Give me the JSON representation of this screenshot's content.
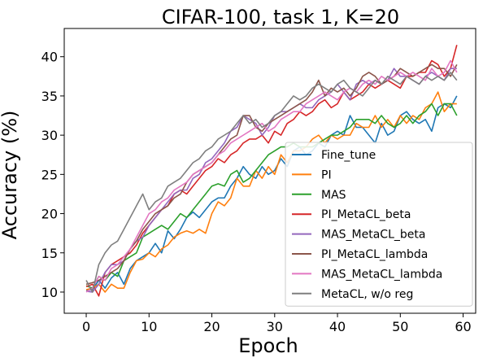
{
  "chart_data": {
    "type": "line",
    "title": "CIFAR-100, task 1, K=20",
    "xlabel": "Epoch",
    "ylabel": "Accuracy (%)",
    "xlim": [
      -3.5,
      62
    ],
    "ylim": [
      7.3,
      43.6
    ],
    "xticks": [
      0,
      10,
      20,
      30,
      40,
      50,
      60
    ],
    "yticks": [
      10,
      15,
      20,
      25,
      30,
      35,
      40
    ],
    "grid": false,
    "legend_position": "lower-right",
    "series": [
      {
        "name": "Fine_tune",
        "color": "#1f77b4",
        "values": [
          10.2,
          10.3,
          11.5,
          10.5,
          11.8,
          12.5,
          11.0,
          13.0,
          14.0,
          14.5,
          15.0,
          16.2,
          15.0,
          17.8,
          16.8,
          18.0,
          19.5,
          20.2,
          19.5,
          20.5,
          21.5,
          22.0,
          22.0,
          23.5,
          24.5,
          26.0,
          25.0,
          24.5,
          26.0,
          25.0,
          25.5,
          27.0,
          26.0,
          28.0,
          28.5,
          27.5,
          28.0,
          29.0,
          28.5,
          30.0,
          30.5,
          30.0,
          32.5,
          31.0,
          31.0,
          30.0,
          29.0,
          31.5,
          30.0,
          30.5,
          32.5,
          33.0,
          32.0,
          31.5,
          32.0,
          30.5,
          33.5,
          34.0,
          33.5,
          35.0
        ]
      },
      {
        "name": "PI",
        "color": "#ff7f0e",
        "values": [
          10.3,
          10.5,
          11.0,
          10.0,
          11.0,
          10.5,
          10.5,
          12.5,
          14.0,
          14.2,
          15.0,
          14.5,
          15.5,
          16.0,
          17.0,
          17.5,
          17.8,
          17.5,
          18.0,
          17.5,
          20.0,
          21.5,
          21.0,
          22.0,
          24.5,
          23.5,
          23.5,
          25.5,
          24.5,
          26.0,
          25.0,
          27.5,
          26.5,
          28.0,
          28.0,
          28.5,
          29.5,
          30.0,
          29.0,
          30.0,
          29.5,
          30.0,
          30.0,
          31.5,
          31.0,
          31.0,
          32.5,
          31.0,
          32.0,
          31.0,
          32.5,
          31.5,
          32.5,
          32.0,
          33.5,
          34.0,
          35.5,
          33.0,
          34.0,
          34.0
        ]
      },
      {
        "name": "MAS",
        "color": "#2ca02c",
        "values": [
          10.8,
          10.5,
          12.0,
          11.5,
          12.5,
          12.0,
          14.0,
          14.5,
          15.0,
          17.0,
          17.5,
          18.0,
          18.5,
          18.0,
          19.0,
          20.0,
          19.5,
          20.5,
          21.5,
          22.5,
          23.5,
          23.8,
          23.5,
          25.0,
          25.5,
          24.0,
          24.5,
          25.5,
          26.5,
          27.5,
          28.0,
          28.5,
          28.5,
          29.0,
          28.5,
          28.5,
          28.5,
          29.0,
          29.5,
          30.0,
          30.0,
          30.5,
          31.0,
          32.0,
          32.0,
          32.0,
          31.5,
          32.5,
          31.5,
          31.0,
          31.5,
          32.5,
          31.5,
          32.5,
          33.0,
          34.0,
          32.5,
          34.0,
          34.0,
          32.5
        ]
      },
      {
        "name": "PI_MetaCL_beta",
        "color": "#d62728",
        "values": [
          10.7,
          11.0,
          9.5,
          12.5,
          13.5,
          14.0,
          14.5,
          15.0,
          16.0,
          17.5,
          18.5,
          19.5,
          20.5,
          21.0,
          22.5,
          23.0,
          22.5,
          23.5,
          24.5,
          25.5,
          26.0,
          27.0,
          26.5,
          27.5,
          28.0,
          29.0,
          29.5,
          29.5,
          30.0,
          29.0,
          30.5,
          30.0,
          31.5,
          32.0,
          33.0,
          32.5,
          33.0,
          34.0,
          34.5,
          33.5,
          34.0,
          35.5,
          34.5,
          35.0,
          35.5,
          36.5,
          36.0,
          36.5,
          37.0,
          36.5,
          36.0,
          37.5,
          37.5,
          38.0,
          38.0,
          39.5,
          39.0,
          37.5,
          38.5,
          41.5
        ]
      },
      {
        "name": "MAS_MetaCL_beta",
        "color": "#9467bd",
        "values": [
          10.1,
          10.0,
          11.0,
          12.5,
          13.5,
          13.5,
          14.0,
          15.5,
          16.5,
          17.0,
          18.5,
          19.5,
          20.5,
          21.5,
          22.5,
          23.0,
          23.0,
          24.5,
          25.0,
          26.5,
          27.0,
          28.0,
          29.0,
          30.5,
          31.0,
          32.5,
          32.0,
          31.5,
          30.0,
          31.0,
          32.5,
          33.0,
          33.0,
          33.5,
          34.0,
          33.5,
          33.5,
          34.5,
          35.0,
          35.5,
          36.5,
          35.5,
          34.5,
          36.5,
          37.0,
          36.5,
          37.0,
          36.5,
          37.0,
          38.5,
          37.5,
          37.5,
          37.0,
          36.5,
          37.5,
          38.0,
          37.5,
          37.0,
          38.5,
          38.5
        ]
      },
      {
        "name": "PI_MetaCL_lambda",
        "color": "#8c564b",
        "values": [
          11.0,
          11.2,
          11.5,
          12.0,
          12.5,
          13.0,
          14.0,
          15.5,
          16.5,
          18.0,
          19.0,
          20.0,
          20.5,
          21.0,
          22.0,
          22.5,
          24.0,
          25.0,
          25.5,
          26.0,
          26.5,
          27.5,
          28.5,
          29.5,
          30.0,
          32.5,
          32.5,
          31.0,
          30.5,
          31.5,
          32.0,
          32.5,
          33.0,
          33.5,
          34.0,
          34.5,
          35.5,
          37.0,
          35.0,
          36.0,
          35.5,
          36.0,
          35.0,
          36.0,
          37.5,
          38.0,
          37.5,
          36.5,
          37.0,
          37.5,
          38.5,
          38.0,
          37.5,
          38.0,
          38.5,
          39.0,
          38.5,
          38.5,
          37.5,
          39.0
        ]
      },
      {
        "name": "MAS_MetaCL_lambda",
        "color": "#e377c2",
        "values": [
          10.0,
          10.5,
          12.0,
          11.5,
          13.0,
          13.5,
          14.5,
          15.5,
          17.0,
          18.5,
          20.0,
          20.5,
          21.5,
          22.0,
          23.0,
          23.5,
          24.0,
          25.0,
          25.5,
          26.0,
          26.5,
          27.5,
          28.0,
          29.0,
          29.5,
          30.0,
          30.5,
          31.0,
          31.5,
          30.5,
          31.0,
          32.0,
          32.5,
          33.0,
          33.0,
          34.0,
          34.5,
          35.0,
          35.5,
          35.0,
          34.5,
          35.5,
          36.0,
          35.5,
          36.5,
          37.0,
          36.5,
          37.5,
          37.0,
          37.5,
          38.0,
          37.5,
          38.0,
          37.5,
          37.0,
          38.5,
          37.5,
          38.0,
          39.5,
          38.0
        ]
      },
      {
        "name": "MetaCL, w/o reg",
        "color": "#7f7f7f",
        "values": [
          11.5,
          10.0,
          13.5,
          15.0,
          16.0,
          16.5,
          18.0,
          19.5,
          21.0,
          22.5,
          20.5,
          21.5,
          22.0,
          23.5,
          24.0,
          24.5,
          25.5,
          26.5,
          27.0,
          28.0,
          28.5,
          29.5,
          30.0,
          30.5,
          31.5,
          32.5,
          31.5,
          32.0,
          31.0,
          31.5,
          32.5,
          33.0,
          34.0,
          35.0,
          34.5,
          35.0,
          36.0,
          36.5,
          36.0,
          35.5,
          36.5,
          37.0,
          36.0,
          35.5,
          35.0,
          36.0,
          37.0,
          36.5,
          37.5,
          37.0,
          36.5,
          37.5,
          37.0,
          36.5,
          37.5,
          37.0,
          37.5,
          37.0,
          38.0,
          37.0
        ]
      }
    ]
  }
}
